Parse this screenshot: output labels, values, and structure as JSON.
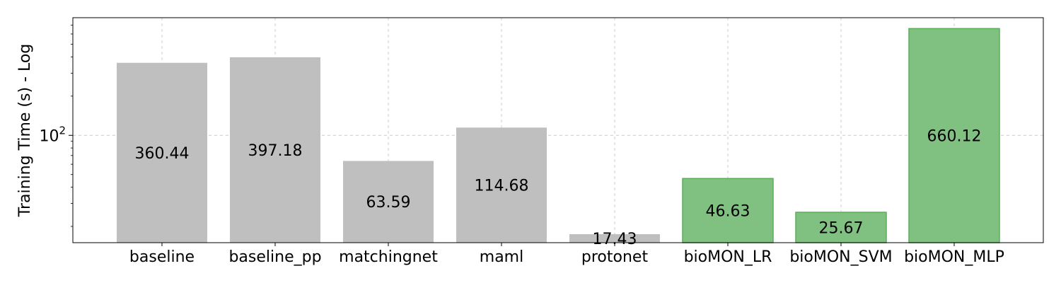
{
  "chart_data": {
    "type": "bar",
    "title": "",
    "xlabel": "",
    "ylabel": "Training Time (s) - Log",
    "yscale": "log",
    "ylim": [
      15,
      800
    ],
    "y_ticks": [
      {
        "value": 100,
        "base": "10",
        "exponent": "2"
      }
    ],
    "grid": true,
    "categories": [
      "baseline",
      "baseline_pp",
      "matchingnet",
      "maml",
      "protonet",
      "bioMON_LR",
      "bioMON_SVM",
      "bioMON_MLP"
    ],
    "values": [
      360.44,
      397.18,
      63.59,
      114.68,
      17.43,
      46.63,
      25.67,
      660.12
    ],
    "labels": [
      "360.44",
      "397.18",
      "63.59",
      "114.68",
      "17.43",
      "46.63",
      "25.67",
      "660.12"
    ],
    "colors": [
      "#bfbfbf",
      "#bfbfbf",
      "#bfbfbf",
      "#bfbfbf",
      "#bfbfbf",
      "#80c080",
      "#80c080",
      "#80c080"
    ],
    "edge_colors": [
      "none",
      "none",
      "none",
      "none",
      "none",
      "#5aae5a",
      "#5aae5a",
      "#5aae5a"
    ]
  }
}
